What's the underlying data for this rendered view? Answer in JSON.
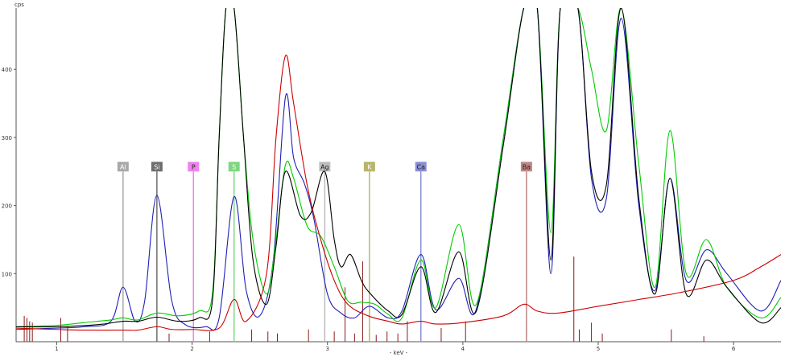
{
  "chart_data": {
    "type": "line",
    "ylabel": "cps",
    "xlabel": "- keV -",
    "xlim": [
      0.7,
      6.35
    ],
    "ylim": [
      0,
      490
    ],
    "x_ticks": [
      1,
      2,
      3,
      4,
      5,
      6
    ],
    "y_ticks": [
      100,
      200,
      300,
      400
    ],
    "grid": false,
    "element_markers": [
      {
        "label": "Al",
        "x": 1.49,
        "color": "#a9a9a9",
        "text_color": "#ffffff"
      },
      {
        "label": "Si",
        "x": 1.74,
        "color": "#6e6e6e",
        "text_color": "#ffffff"
      },
      {
        "label": "P",
        "x": 2.01,
        "color": "#ee82ee",
        "text_color": "#202020"
      },
      {
        "label": "S",
        "x": 2.31,
        "color": "#7ed87e",
        "text_color": "#ffffff"
      },
      {
        "label": "Ag",
        "x": 2.98,
        "color": "#bdbdbd",
        "text_color": "#202020"
      },
      {
        "label": "K",
        "x": 3.31,
        "color": "#b8b56a",
        "text_color": "#ffffff"
      },
      {
        "label": "Ca",
        "x": 3.69,
        "color": "#8b8fd6",
        "text_color": "#202020"
      },
      {
        "label": "Ba",
        "x": 4.47,
        "color": "#c08585",
        "text_color": "#202020"
      }
    ],
    "series": [
      {
        "color": "#1f1fb5",
        "x": [
          0.7,
          1.0,
          1.2,
          1.4,
          1.49,
          1.58,
          1.65,
          1.74,
          1.85,
          1.95,
          2.1,
          2.2,
          2.31,
          2.4,
          2.5,
          2.6,
          2.69,
          2.75,
          2.83,
          2.9,
          3.0,
          3.1,
          3.2,
          3.31,
          3.45,
          3.55,
          3.69,
          3.8,
          3.97,
          4.1,
          4.3,
          4.45,
          4.55,
          4.65,
          4.72,
          4.85,
          4.95,
          5.06,
          5.17,
          5.3,
          5.42,
          5.53,
          5.65,
          5.8,
          5.95,
          6.2,
          6.35
        ],
        "y": [
          18,
          20,
          22,
          30,
          80,
          30,
          60,
          215,
          60,
          25,
          22,
          35,
          213,
          75,
          38,
          120,
          360,
          270,
          232,
          180,
          70,
          42,
          35,
          52,
          35,
          45,
          128,
          47,
          93,
          48,
          300,
          490,
          490,
          100,
          490,
          490,
          240,
          210,
          475,
          200,
          75,
          240,
          90,
          135,
          100,
          45,
          90
        ]
      },
      {
        "color": "#00cc00",
        "x": [
          0.7,
          1.0,
          1.2,
          1.4,
          1.49,
          1.6,
          1.74,
          1.9,
          2.05,
          2.15,
          2.2,
          2.25,
          2.31,
          2.38,
          2.45,
          2.55,
          2.62,
          2.69,
          2.75,
          2.85,
          2.95,
          3.05,
          3.15,
          3.25,
          3.35,
          3.45,
          3.55,
          3.69,
          3.8,
          3.97,
          4.1,
          4.3,
          4.45,
          4.55,
          4.65,
          4.72,
          4.85,
          4.95,
          5.06,
          5.17,
          5.3,
          5.42,
          5.53,
          5.65,
          5.8,
          5.95,
          6.2,
          6.35
        ],
        "y": [
          22,
          24,
          28,
          32,
          35,
          32,
          42,
          38,
          45,
          70,
          300,
          490,
          490,
          300,
          150,
          70,
          150,
          260,
          240,
          170,
          155,
          110,
          60,
          58,
          55,
          40,
          35,
          120,
          50,
          172,
          55,
          300,
          490,
          490,
          160,
          490,
          490,
          400,
          310,
          490,
          260,
          80,
          310,
          100,
          150,
          80,
          35,
          65
        ]
      },
      {
        "color": "#000000",
        "x": [
          0.7,
          1.0,
          1.3,
          1.49,
          1.6,
          1.74,
          1.9,
          2.05,
          2.15,
          2.2,
          2.25,
          2.31,
          2.38,
          2.45,
          2.55,
          2.62,
          2.69,
          2.8,
          2.88,
          2.98,
          3.05,
          3.1,
          3.17,
          3.25,
          3.31,
          3.45,
          3.55,
          3.69,
          3.8,
          3.97,
          4.1,
          4.3,
          4.45,
          4.55,
          4.65,
          4.72,
          4.85,
          4.95,
          5.06,
          5.17,
          5.3,
          5.42,
          5.53,
          5.65,
          5.8,
          5.95,
          6.2,
          6.35
        ],
        "y": [
          22,
          22,
          25,
          30,
          30,
          36,
          30,
          35,
          60,
          300,
          490,
          490,
          300,
          120,
          55,
          140,
          250,
          185,
          190,
          250,
          150,
          110,
          128,
          90,
          72,
          45,
          40,
          110,
          43,
          132,
          45,
          290,
          490,
          490,
          120,
          490,
          490,
          250,
          230,
          490,
          210,
          70,
          240,
          70,
          120,
          80,
          28,
          50
        ]
      },
      {
        "color": "#cc0000",
        "x": [
          0.7,
          1.0,
          1.2,
          1.49,
          1.6,
          1.74,
          1.85,
          2.0,
          2.2,
          2.31,
          2.4,
          2.55,
          2.62,
          2.69,
          2.75,
          2.85,
          2.95,
          3.05,
          3.15,
          3.3,
          3.45,
          3.55,
          3.69,
          3.8,
          4.0,
          4.3,
          4.45,
          4.55,
          4.7,
          5.0,
          5.3,
          5.6,
          6.0,
          6.2,
          6.35
        ],
        "y": [
          20,
          18,
          17,
          17,
          17,
          22,
          18,
          18,
          20,
          62,
          30,
          100,
          300,
          420,
          350,
          230,
          150,
          90,
          55,
          38,
          30,
          26,
          30,
          26,
          28,
          38,
          55,
          45,
          42,
          52,
          62,
          72,
          90,
          110,
          128
        ]
      }
    ],
    "lines_meta": {
      "vertical_marker_height": 250,
      "element_line_stub_x": [
        0.76,
        0.78,
        0.8,
        0.82,
        1.03,
        1.08,
        1.83,
        2.01,
        2.13,
        2.44,
        2.56,
        2.63,
        2.86,
        2.98,
        3.05,
        3.13,
        3.2,
        3.26,
        3.31,
        3.36,
        3.44,
        3.52,
        3.59,
        3.69,
        3.84,
        4.02,
        4.47,
        4.82,
        4.86,
        4.95,
        5.03,
        5.54,
        5.78
      ],
      "element_line_stub_y": [
        38,
        35,
        30,
        28,
        35,
        22,
        12,
        120,
        15,
        18,
        15,
        12,
        18,
        25,
        15,
        80,
        12,
        118,
        12,
        10,
        15,
        12,
        30,
        110,
        20,
        30,
        28,
        125,
        18,
        28,
        12,
        18,
        8
      ]
    }
  }
}
